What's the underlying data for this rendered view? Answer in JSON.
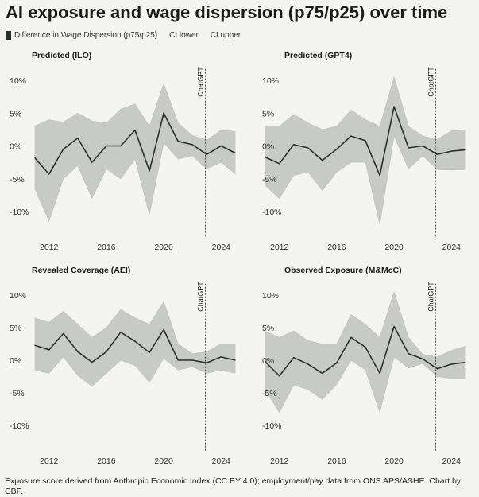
{
  "title": "AI exposure and wage dispersion (p75/p25) over time",
  "legend": {
    "line": "Difference in Wage Dispersion (p75/p25)",
    "ci_lower": "CI lower",
    "ci_upper": "CI upper"
  },
  "source": "Exposure score derived from Anthropic Economic Index (CC BY 4.0); employment/pay data from ONS APS/ASHE. Chart by CBP.",
  "colors": {
    "line": "#2b302c",
    "band": "#c7cac5",
    "background": "#f4f4f2"
  },
  "chart_data": [
    {
      "type": "line",
      "title": "Predicted (ILO)",
      "x": [
        2011,
        2012,
        2013,
        2014,
        2015,
        2016,
        2017,
        2018,
        2019,
        2020,
        2021,
        2022,
        2023,
        2024,
        2025
      ],
      "series": [
        {
          "name": "Difference in Wage Dispersion (p75/p25)",
          "values": [
            -1.8,
            -4.3,
            -0.5,
            1.2,
            -2.5,
            0.0,
            0.0,
            2.4,
            -3.8,
            5.0,
            0.7,
            0.2,
            -1.3,
            0.0,
            -1.1
          ]
        },
        {
          "name": "CI lower",
          "values": [
            -6.5,
            -11.5,
            -5.0,
            -3.0,
            -8.0,
            -3.5,
            -5.0,
            -2.0,
            -10.5,
            0.5,
            -2.0,
            -1.5,
            -3.5,
            -2.5,
            -4.3
          ]
        },
        {
          "name": "CI upper",
          "values": [
            3.0,
            4.0,
            3.6,
            5.0,
            3.8,
            3.5,
            5.6,
            6.4,
            3.0,
            9.5,
            3.5,
            1.6,
            0.9,
            2.4,
            2.2
          ]
        }
      ],
      "xticks": [
        "2012",
        "2016",
        "2020",
        "2024"
      ],
      "yticks": [
        "10%",
        "5%",
        "0%",
        "-5%",
        "-10%"
      ],
      "ylim": [
        -14,
        11
      ],
      "annotation": {
        "label": "ChatGPT",
        "x": 2022.9
      }
    },
    {
      "type": "line",
      "title": "Predicted (GPT4)",
      "x": [
        2011,
        2012,
        2013,
        2014,
        2015,
        2016,
        2017,
        2018,
        2019,
        2020,
        2021,
        2022,
        2023,
        2024,
        2025
      ],
      "series": [
        {
          "name": "Difference in Wage Dispersion (p75/p25)",
          "values": [
            -1.7,
            -2.7,
            0.2,
            -0.3,
            -2.2,
            -0.5,
            1.5,
            0.8,
            -4.5,
            6.0,
            -0.3,
            0.0,
            -1.3,
            -0.8,
            -0.6
          ]
        },
        {
          "name": "CI lower",
          "values": [
            -6.0,
            -8.0,
            -4.5,
            -4.0,
            -6.8,
            -4.0,
            -2.5,
            -2.5,
            -12.0,
            1.5,
            -3.5,
            -1.5,
            -3.6,
            -3.7,
            -3.6
          ]
        },
        {
          "name": "CI upper",
          "values": [
            3.0,
            3.0,
            4.8,
            3.5,
            2.5,
            3.0,
            5.5,
            4.0,
            3.0,
            10.5,
            3.0,
            1.5,
            1.0,
            2.3,
            2.5
          ]
        }
      ],
      "xticks": [
        "2012",
        "2016",
        "2020",
        "2024"
      ],
      "yticks": [
        "10%",
        "5%",
        "0%",
        "-5%",
        "-10%"
      ],
      "ylim": [
        -14,
        11
      ],
      "annotation": {
        "label": "ChatGPT",
        "x": 2022.9
      }
    },
    {
      "type": "line",
      "title": "Revealed Coverage (AEI)",
      "x": [
        2011,
        2012,
        2013,
        2014,
        2015,
        2016,
        2017,
        2018,
        2019,
        2020,
        2021,
        2022,
        2023,
        2024,
        2025
      ],
      "series": [
        {
          "name": "Difference in Wage Dispersion (p75/p25)",
          "values": [
            2.3,
            1.6,
            4.1,
            1.3,
            -0.3,
            1.3,
            4.3,
            2.9,
            1.2,
            4.7,
            0.0,
            0.0,
            -0.4,
            0.5,
            0.0
          ]
        },
        {
          "name": "CI lower",
          "values": [
            -1.5,
            -2.0,
            0.5,
            -2.3,
            -4.0,
            -2.0,
            0.0,
            -0.8,
            -3.4,
            0.3,
            -1.5,
            -1.0,
            -2.0,
            -1.5,
            -2.0
          ]
        },
        {
          "name": "CI upper",
          "values": [
            6.5,
            5.8,
            7.5,
            5.5,
            3.5,
            5.0,
            7.8,
            6.5,
            5.5,
            9.0,
            2.5,
            1.0,
            1.3,
            2.5,
            2.5
          ]
        }
      ],
      "xticks": [
        "2012",
        "2016",
        "2020",
        "2024"
      ],
      "yticks": [
        "10%",
        "5%",
        "0%",
        "-5%",
        "-10%"
      ],
      "ylim": [
        -14,
        11
      ],
      "annotation": {
        "label": "ChatGPT",
        "x": 2022.9
      }
    },
    {
      "type": "line",
      "title": "Observed Exposure (M&McC)",
      "x": [
        2011,
        2012,
        2013,
        2014,
        2015,
        2016,
        2017,
        2018,
        2019,
        2020,
        2021,
        2022,
        2023,
        2024,
        2025
      ],
      "series": [
        {
          "name": "Difference in Wage Dispersion (p75/p25)",
          "values": [
            -0.2,
            -2.4,
            0.4,
            -0.6,
            -2.0,
            -0.4,
            3.5,
            2.0,
            -2.0,
            5.2,
            1.0,
            0.2,
            -1.3,
            -0.6,
            -0.3
          ]
        },
        {
          "name": "CI lower",
          "values": [
            -4.5,
            -8.0,
            -3.8,
            -4.5,
            -6.0,
            -3.7,
            0.0,
            -1.5,
            -8.0,
            0.5,
            -1.2,
            -0.5,
            -2.5,
            -2.8,
            -2.8
          ]
        },
        {
          "name": "CI upper",
          "values": [
            4.5,
            3.5,
            4.5,
            3.0,
            2.5,
            2.5,
            7.0,
            5.5,
            3.5,
            10.5,
            3.5,
            0.9,
            0.5,
            1.5,
            2.2
          ]
        }
      ],
      "xticks": [
        "2012",
        "2016",
        "2020",
        "2024"
      ],
      "yticks": [
        "10%",
        "5%",
        "0%",
        "-5%",
        "-10%"
      ],
      "ylim": [
        -14,
        11
      ],
      "annotation": {
        "label": "ChatGPT",
        "x": 2022.9
      }
    }
  ]
}
